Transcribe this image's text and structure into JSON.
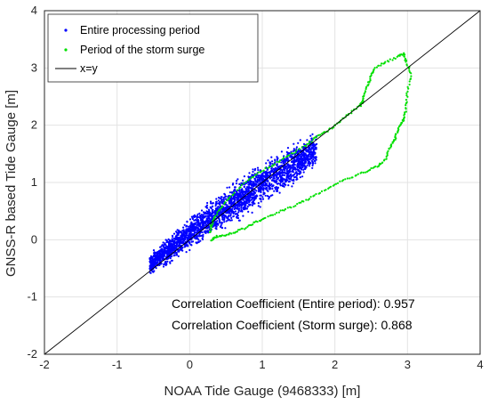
{
  "chart_data": {
    "type": "scatter",
    "xlabel": "NOAA Tide Gauge (9468333) [m]",
    "ylabel": "GNSS-R based Tide Gauge [m]",
    "xlim": [
      -2,
      4
    ],
    "ylim": [
      -2,
      4
    ],
    "xticks": [
      "-2",
      "-1",
      "0",
      "1",
      "2",
      "3",
      "4"
    ],
    "yticks": [
      "-2",
      "-1",
      "0",
      "1",
      "2",
      "3",
      "4"
    ],
    "grid": true,
    "legend_position": "top-left",
    "series": [
      {
        "name": "Entire processing period",
        "color": "#0000ff",
        "marker": "dot",
        "band": [
          [
            -0.55,
            -0.68,
            -0.2
          ],
          [
            -0.3,
            -0.5,
            0.1
          ],
          [
            0.0,
            -0.25,
            0.45
          ],
          [
            0.3,
            0.0,
            0.75
          ],
          [
            0.6,
            0.2,
            1.05
          ],
          [
            0.9,
            0.45,
            1.35
          ],
          [
            1.2,
            0.7,
            1.6
          ],
          [
            1.5,
            0.95,
            1.8
          ],
          [
            1.75,
            1.2,
            1.95
          ]
        ]
      },
      {
        "name": "Period of the storm surge",
        "color": "#00e000",
        "marker": "dot",
        "points": [
          [
            0.3,
            0.0
          ],
          [
            0.35,
            0.05
          ],
          [
            0.45,
            0.07
          ],
          [
            0.6,
            0.12
          ],
          [
            0.75,
            0.2
          ],
          [
            0.9,
            0.3
          ],
          [
            1.05,
            0.38
          ],
          [
            1.25,
            0.5
          ],
          [
            1.45,
            0.6
          ],
          [
            1.65,
            0.72
          ],
          [
            1.85,
            0.85
          ],
          [
            2.05,
            1.0
          ],
          [
            2.25,
            1.1
          ],
          [
            2.45,
            1.2
          ],
          [
            2.6,
            1.3
          ],
          [
            2.7,
            1.4
          ],
          [
            2.75,
            1.6
          ],
          [
            2.82,
            1.75
          ],
          [
            2.85,
            1.85
          ],
          [
            2.9,
            2.0
          ],
          [
            2.95,
            2.1
          ],
          [
            2.98,
            2.3
          ],
          [
            3.0,
            2.6
          ],
          [
            3.05,
            2.9
          ],
          [
            2.98,
            3.1
          ],
          [
            2.95,
            3.25
          ],
          [
            2.88,
            3.2
          ],
          [
            2.7,
            3.1
          ],
          [
            2.55,
            3.0
          ],
          [
            2.5,
            2.85
          ],
          [
            2.45,
            2.7
          ],
          [
            2.4,
            2.55
          ],
          [
            2.38,
            2.4
          ],
          [
            2.35,
            2.35
          ],
          [
            2.2,
            2.2
          ],
          [
            2.05,
            2.05
          ],
          [
            1.9,
            1.9
          ],
          [
            1.75,
            1.8
          ],
          [
            1.6,
            1.65
          ],
          [
            1.4,
            1.5
          ],
          [
            1.2,
            1.35
          ],
          [
            1.0,
            1.2
          ],
          [
            0.8,
            1.05
          ],
          [
            0.6,
            0.8
          ],
          [
            0.45,
            0.6
          ],
          [
            0.35,
            0.4
          ],
          [
            0.3,
            0.25
          ],
          [
            0.28,
            0.1
          ]
        ]
      },
      {
        "name": "x=y",
        "color": "#000000",
        "marker": "line",
        "points": [
          [
            -2,
            -2
          ],
          [
            4,
            4
          ]
        ]
      }
    ],
    "annotations": [
      "Correlation Coefficient (Entire period): 0.957",
      "Correlation Coefficient (Storm surge): 0.868"
    ]
  }
}
